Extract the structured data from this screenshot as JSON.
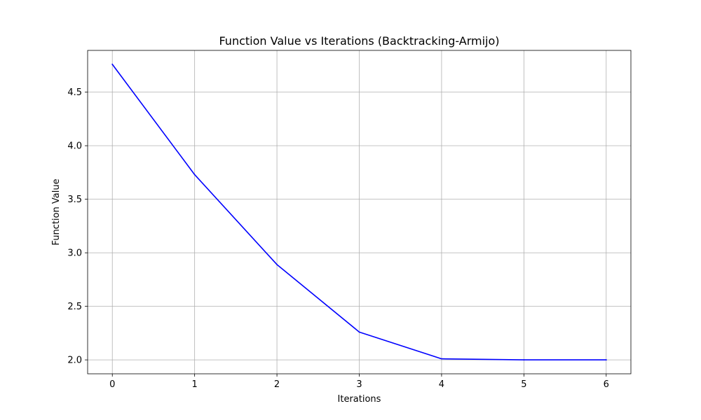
{
  "chart_data": {
    "type": "line",
    "title": "Function Value vs Iterations (Backtracking-Armijo)",
    "xlabel": "Iterations",
    "ylabel": "Function Value",
    "xlim": [
      -0.3,
      6.3
    ],
    "ylim": [
      1.87,
      4.89
    ],
    "grid": true,
    "x_ticks": [
      0,
      1,
      2,
      3,
      4,
      5,
      6
    ],
    "x_tick_labels": [
      "0",
      "1",
      "2",
      "3",
      "4",
      "5",
      "6"
    ],
    "y_ticks": [
      2.0,
      2.5,
      3.0,
      3.5,
      4.0,
      4.5
    ],
    "y_tick_labels": [
      "2.0",
      "2.5",
      "3.0",
      "3.5",
      "4.0",
      "4.5"
    ],
    "series": [
      {
        "color": "#0000ff",
        "x": [
          0,
          1,
          2,
          3,
          4,
          5,
          6
        ],
        "values": [
          4.76,
          3.73,
          2.89,
          2.26,
          2.01,
          2.0,
          2.0
        ]
      }
    ]
  }
}
